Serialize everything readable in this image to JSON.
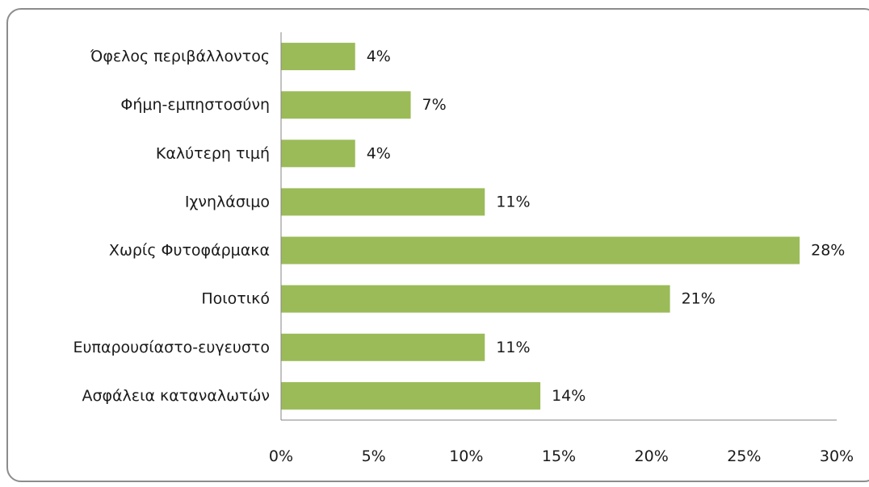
{
  "chart_data": {
    "type": "bar",
    "orientation": "horizontal",
    "categories": [
      "Όφελος περιβάλλοντος",
      "Φήμη-εμπηστοσύνη",
      "Καλύτερη τιμή",
      "Ιχνηλάσιμο",
      "Χωρίς Φυτοφάρμακα",
      "Ποιοτικό",
      "Ευπαρουσίαστο-ευγευστο",
      "Ασφάλεια καταναλωτών"
    ],
    "values": [
      4,
      7,
      4,
      11,
      28,
      21,
      11,
      14
    ],
    "data_labels": [
      "4%",
      "7%",
      "4%",
      "11%",
      "28%",
      "21%",
      "11%",
      "14%"
    ],
    "xlim": [
      0,
      30
    ],
    "x_ticks": [
      "0%",
      "5%",
      "10%",
      "15%",
      "20%",
      "25%",
      "30%"
    ],
    "title": "",
    "xlabel": "",
    "ylabel": "",
    "grid": false,
    "legend": "none",
    "colors": {
      "bar": "#9bbb59",
      "axis": "#868686",
      "frame": "#8c8c8c",
      "text": "#1a1a1a"
    }
  }
}
